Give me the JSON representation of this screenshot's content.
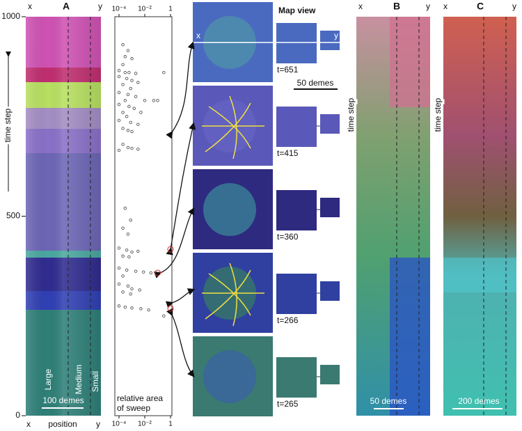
{
  "chart_data": {
    "type": "scatter",
    "xscale": "log",
    "xlim": [
      0.0001,
      1
    ],
    "xticks": [
      {
        "value": 0.0001,
        "label": "10⁻⁴"
      },
      {
        "value": 0.01,
        "label": "10⁻²"
      },
      1
    ],
    "ylim": [
      0,
      1000
    ],
    "yticks": [
      0,
      500,
      1000
    ],
    "series": [
      {
        "color": "#555555",
        "marker": "dot",
        "x": [
          0.0002,
          0.0005,
          0.0003,
          0.001,
          0.0002,
          0.0001,
          0.0003,
          0.0006,
          0.002,
          0.0001,
          0.0004,
          0.001,
          0.003,
          0.0002,
          0.0008,
          0.0001,
          0.0005,
          0.002,
          0.0003,
          0.01,
          0.0001,
          0.0006,
          0.0015,
          0.0002,
          0.005,
          0.0004,
          0.0001,
          0.0008,
          0.003,
          0.0002,
          0.0005,
          0.001,
          0.3,
          0.05,
          0.1,
          0.0002,
          0.0005,
          0.001,
          0.0001,
          0.003,
          0.0003,
          0.0008,
          0.0002,
          0.0005,
          0.0001,
          0.0004,
          0.001,
          0.003,
          0.0002,
          0.0006,
          0.0001,
          0.0004,
          0.002,
          0.008,
          0.03,
          0.0002,
          0.0001,
          0.0005,
          0.001,
          0.004,
          0.0002,
          0.0008,
          0.0001,
          0.0003,
          0.001,
          0.005,
          0.02,
          0.3
        ],
        "values": [
          930,
          915,
          900,
          895,
          880,
          865,
          860,
          860,
          858,
          850,
          845,
          840,
          835,
          830,
          820,
          810,
          805,
          800,
          790,
          790,
          780,
          775,
          770,
          760,
          760,
          750,
          740,
          735,
          730,
          720,
          715,
          712,
          860,
          790,
          790,
          680,
          672,
          670,
          665,
          668,
          520,
          490,
          470,
          455,
          420,
          415,
          410,
          412,
          400,
          398,
          370,
          365,
          362,
          360,
          358,
          350,
          330,
          325,
          318,
          315,
          310,
          305,
          275,
          272,
          270,
          268,
          265,
          250
        ]
      },
      {
        "color": "#d03030",
        "marker": "ring",
        "x": [
          1,
          0.1,
          1
        ],
        "values": [
          417,
          358,
          269
        ]
      }
    ]
  },
  "figure": {
    "panel_a": {
      "label": "A",
      "x_end": "x",
      "y_end": "y",
      "axis_label": "position",
      "time_label": "time step",
      "zones": [
        "Large",
        "Medium",
        "Small"
      ],
      "scale": "100 demes"
    },
    "sweep_axis": {
      "label": [
        "relative area",
        "of sweep"
      ]
    },
    "map_view": {
      "title": "Map view",
      "x": "x",
      "y": "y",
      "times": [
        "t=651",
        "t=415",
        "t=360",
        "t=266",
        "t=265"
      ],
      "scale": "50 demes"
    },
    "panel_b": {
      "label": "B",
      "x_end": "x",
      "y_end": "y",
      "time_label": "time step",
      "scale": "50 demes"
    },
    "panel_c": {
      "label": "C",
      "x_end": "x",
      "y_end": "y",
      "time_label": "time step",
      "scale": "200 demes"
    }
  }
}
